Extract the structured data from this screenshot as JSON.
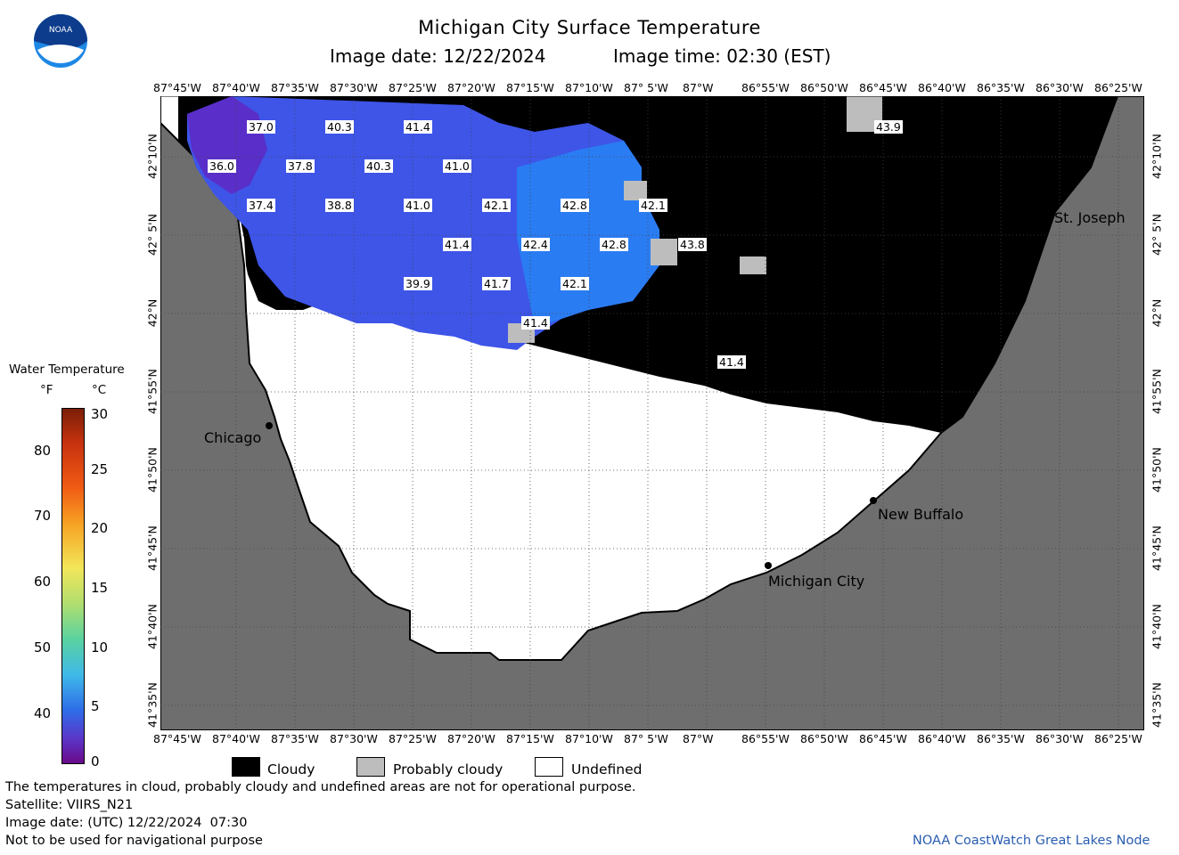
{
  "title": "Michigan City Surface Temperature",
  "subtitle_date": "Image date: 12/22/2024",
  "subtitle_time": "Image time: 02:30 (EST)",
  "logo_text": "NOAA",
  "x_ticks": [
    "87°45'W",
    "87°40'W",
    "87°35'W",
    "87°30'W",
    "87°25'W",
    "87°20'W",
    "87°15'W",
    "87°10'W",
    "87° 5'W",
    "87°W",
    "86°55'W",
    "86°50'W",
    "86°45'W",
    "86°40'W",
    "86°35'W",
    "86°30'W",
    "86°25'W"
  ],
  "y_ticks": [
    "42°10'N",
    "42° 5'N",
    "42°N",
    "41°55'N",
    "41°50'N",
    "41°45'N",
    "41°40'N",
    "41°35'N"
  ],
  "cities": [
    {
      "name": "Chicago"
    },
    {
      "name": "St. Joseph"
    },
    {
      "name": "New Buffalo"
    },
    {
      "name": "Michigan City"
    }
  ],
  "temp_labels": [
    "37.0",
    "40.3",
    "41.4",
    "36.0",
    "37.8",
    "40.3",
    "41.0",
    "37.4",
    "38.8",
    "41.0",
    "42.1",
    "42.8",
    "42.1",
    "41.4",
    "42.4",
    "42.8",
    "43.8",
    "39.9",
    "41.7",
    "42.1",
    "41.4",
    "41.4",
    "43.9"
  ],
  "legend": {
    "title": "Water Temperature",
    "unit_f": "°F",
    "unit_c": "°C",
    "f_values": [
      "80",
      "70",
      "60",
      "50",
      "40"
    ],
    "c_values": [
      "30",
      "25",
      "20",
      "15",
      "10",
      "5",
      "0"
    ],
    "cloudy": "Cloudy",
    "probably_cloudy": "Probably cloudy",
    "undefined": "Undefined"
  },
  "colors": {
    "land": "#6e6e6e",
    "cloud": "#000000",
    "probably_cloudy": "#bdbdbd",
    "water_cold": "#5a2ec8",
    "water_mid": "#3e55e8",
    "water_warm": "#2a7cf2"
  },
  "footer": {
    "note": "The temperatures in cloud, probably cloudy and undefined areas are not for operational purpose.",
    "satellite": "Satellite: VIIRS_N21",
    "utc_date": "Image date: (UTC) 12/22/2024  07:30",
    "navigation": "Not to be used for navigational purpose",
    "credit": "NOAA CoastWatch Great Lakes Node"
  }
}
